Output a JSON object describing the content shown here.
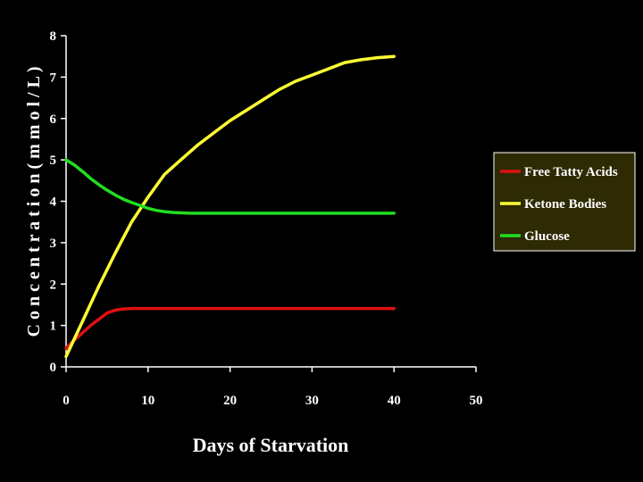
{
  "chart_data": {
    "type": "line",
    "xlabel": "Days of Starvation",
    "ylabel": "C o n c e n t r a t i o n  ( m m o l / L )",
    "xlim": [
      0,
      50
    ],
    "ylim": [
      0,
      8
    ],
    "xticks": [
      0,
      10,
      20,
      30,
      40,
      50
    ],
    "yticks": [
      0,
      1,
      2,
      3,
      4,
      5,
      6,
      7,
      8
    ],
    "grid": false,
    "legend_position": "right",
    "background": "#000000",
    "series": [
      {
        "name": "Free Tatty Acids",
        "color": "#dd1111",
        "x": [
          0,
          1,
          2,
          3,
          4,
          5,
          6,
          7,
          8,
          10,
          15,
          20,
          25,
          30,
          35,
          40
        ],
        "y": [
          0.45,
          0.65,
          0.82,
          1.0,
          1.15,
          1.3,
          1.37,
          1.4,
          1.41,
          1.41,
          1.41,
          1.41,
          1.41,
          1.41,
          1.41,
          1.41
        ]
      },
      {
        "name": "Ketone Bodies",
        "color": "#ffff33",
        "x": [
          0,
          2,
          4,
          6,
          8,
          10,
          12,
          14,
          16,
          18,
          20,
          22,
          24,
          26,
          28,
          30,
          32,
          34,
          36,
          38,
          40
        ],
        "y": [
          0.25,
          1.1,
          1.95,
          2.75,
          3.5,
          4.1,
          4.65,
          5.0,
          5.35,
          5.65,
          5.95,
          6.2,
          6.45,
          6.7,
          6.9,
          7.05,
          7.2,
          7.35,
          7.42,
          7.47,
          7.5
        ]
      },
      {
        "name": "Glucose",
        "color": "#22dd22",
        "x": [
          0,
          1,
          2,
          3,
          4,
          5,
          6,
          7,
          8,
          9,
          10,
          11,
          12,
          13,
          15,
          20,
          25,
          30,
          35,
          40
        ],
        "y": [
          5.0,
          4.88,
          4.72,
          4.55,
          4.4,
          4.27,
          4.15,
          4.05,
          3.97,
          3.9,
          3.83,
          3.78,
          3.75,
          3.73,
          3.71,
          3.71,
          3.71,
          3.71,
          3.71,
          3.71
        ]
      }
    ]
  }
}
